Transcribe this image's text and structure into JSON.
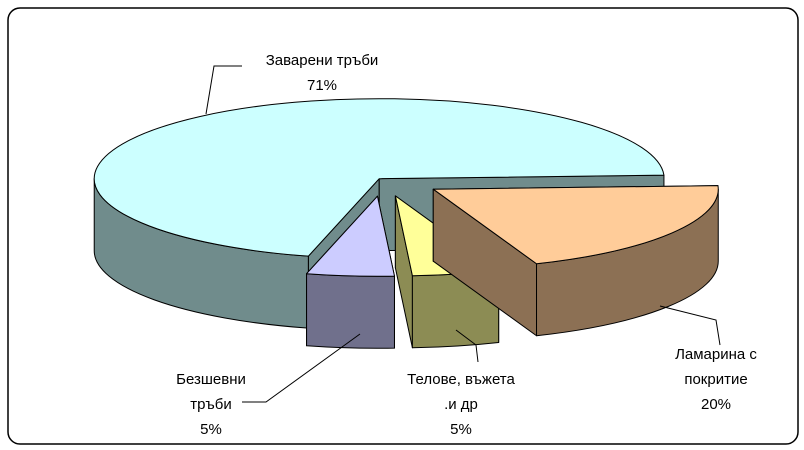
{
  "chart_data": {
    "type": "pie3d",
    "categories": [
      "Заварени тръби",
      "Ламарина с покритие",
      "Телове, въжета .и др",
      "Безшевни тръби"
    ],
    "values": [
      71,
      20,
      5,
      5
    ],
    "value_labels": [
      "71%",
      "20%",
      "5%",
      "5%"
    ],
    "colors": [
      "#ccffff",
      "#ffcc99",
      "#ffff99",
      "#ccccff"
    ]
  }
}
